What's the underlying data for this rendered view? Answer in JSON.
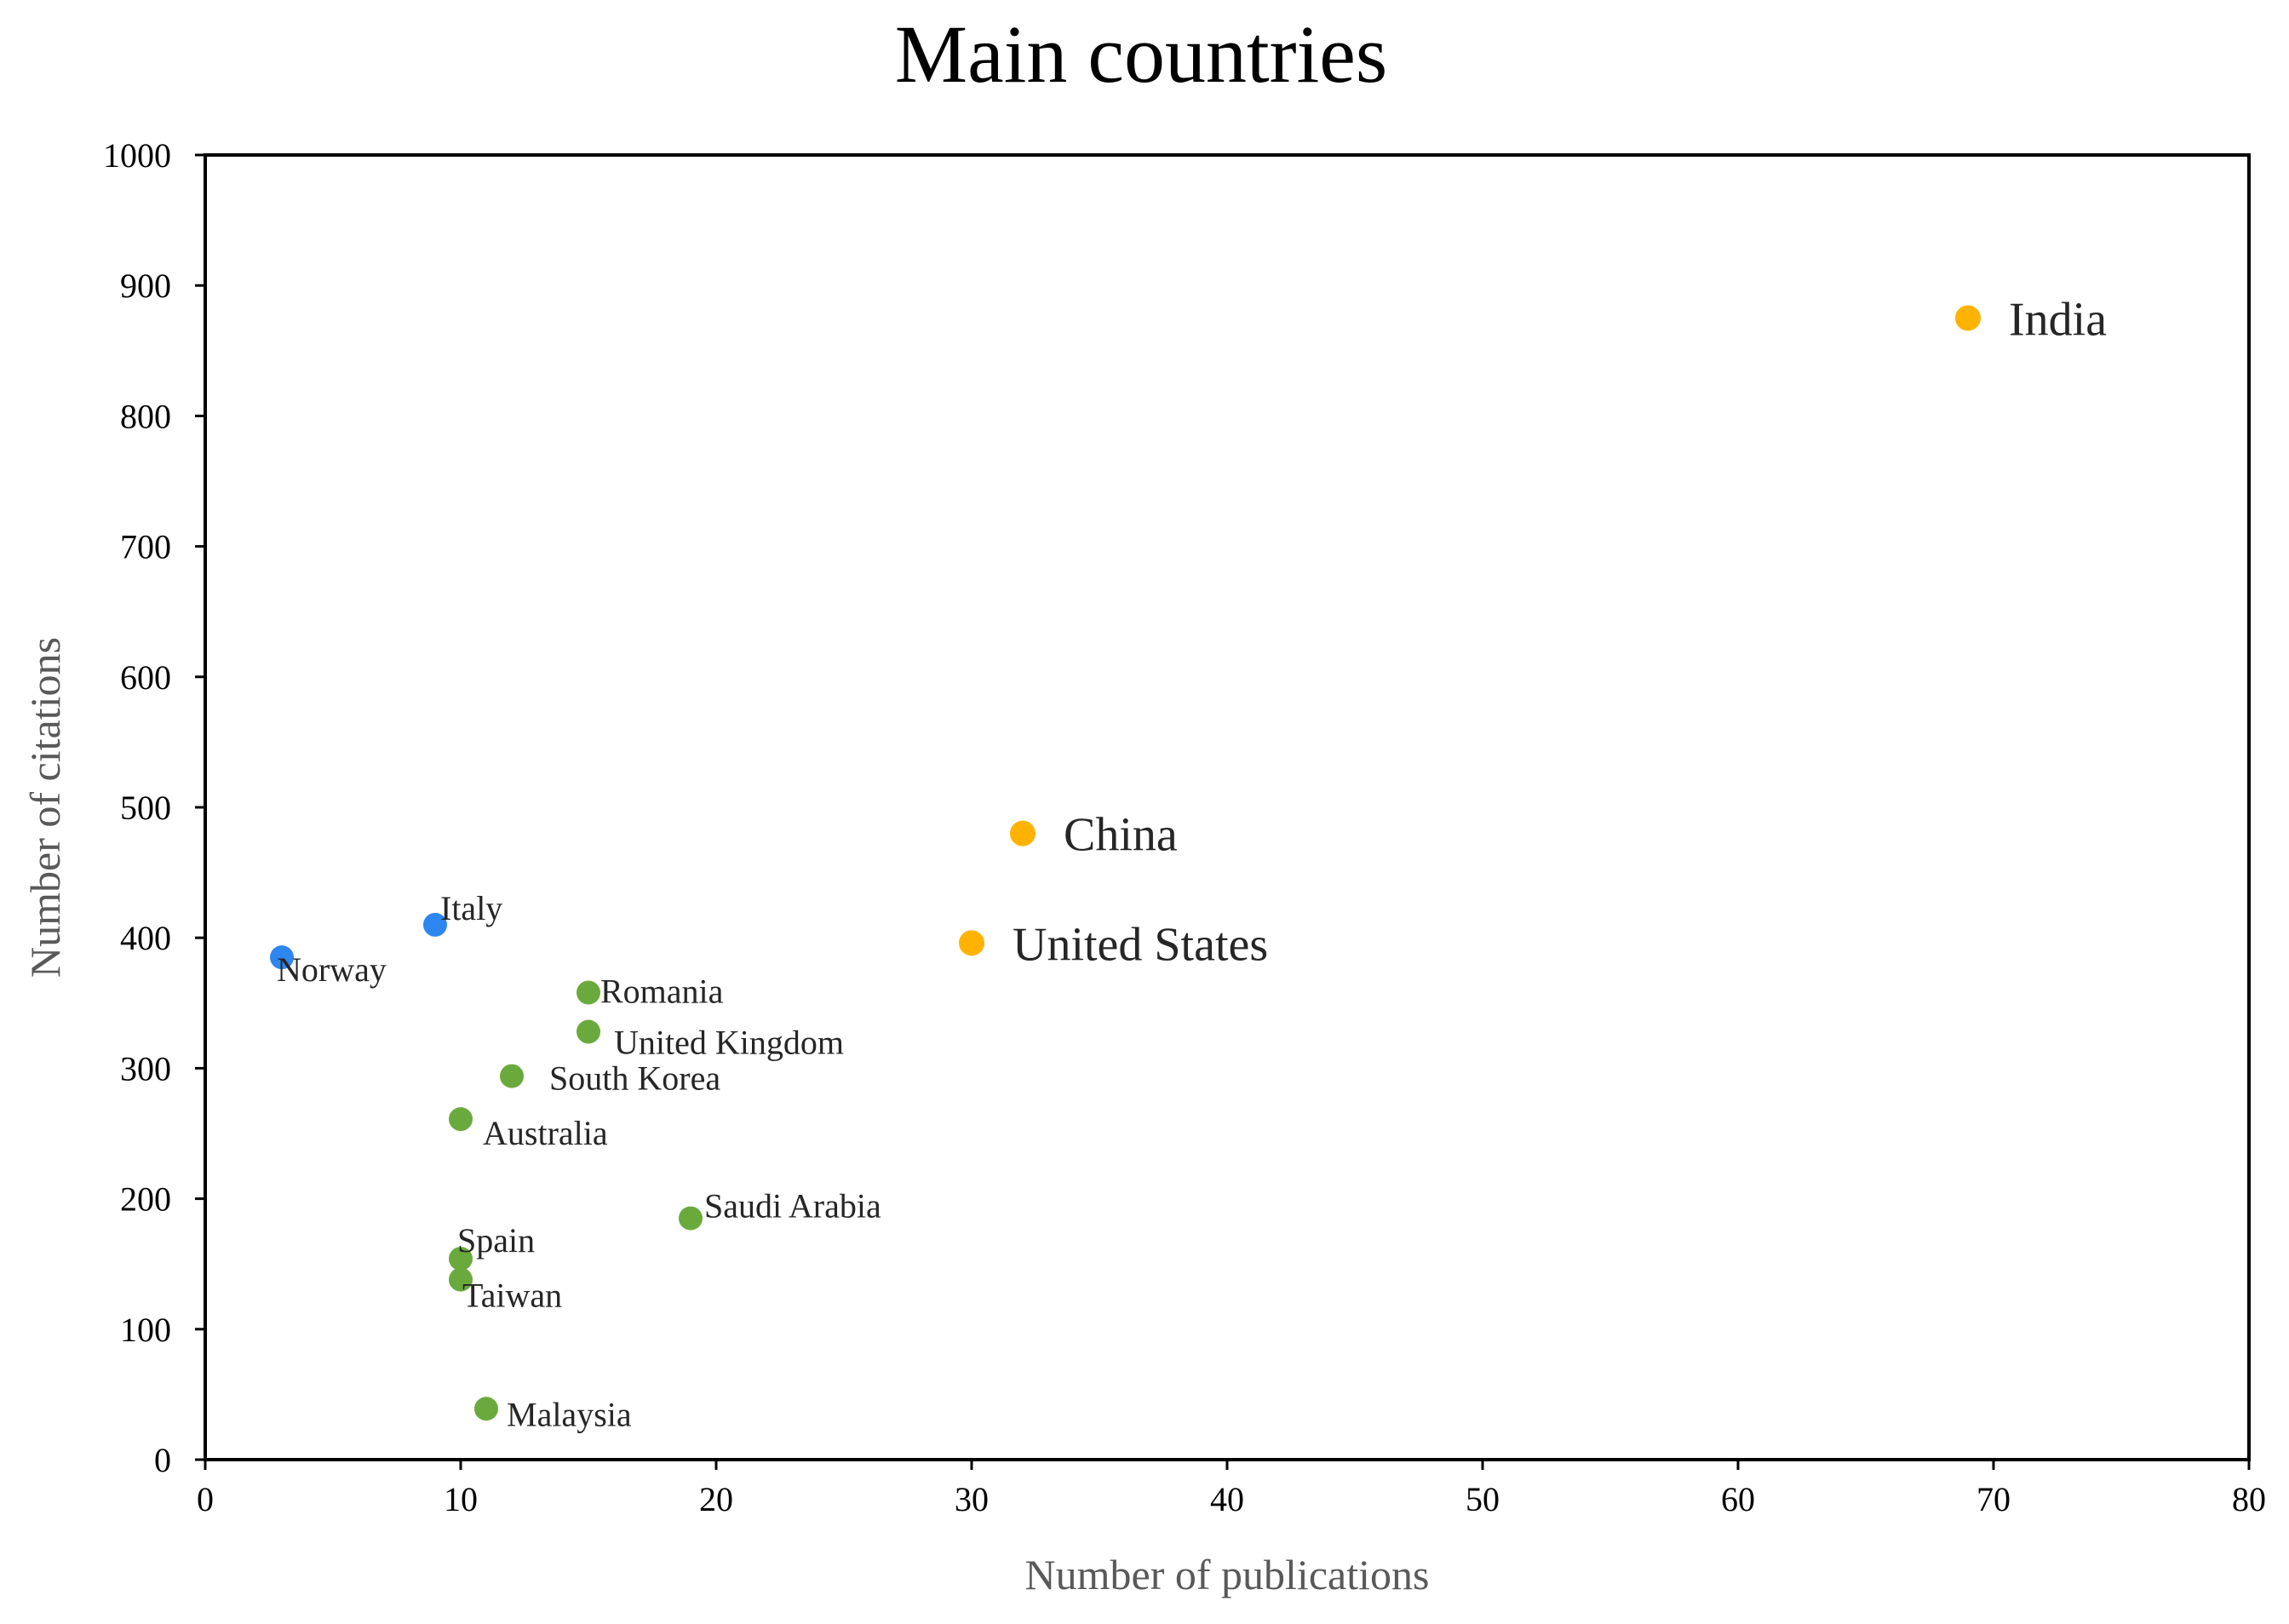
{
  "chart_data": {
    "type": "scatter",
    "title": "Main countries",
    "xlabel": "Number of publications",
    "ylabel": "Number of citations",
    "xlim": [
      0,
      80
    ],
    "ylim": [
      0,
      1000
    ],
    "x_ticks": [
      "0",
      "10",
      "20",
      "30",
      "40",
      "50",
      "60",
      "70",
      "80"
    ],
    "y_ticks": [
      "0",
      "100",
      "200",
      "300",
      "400",
      "500",
      "600",
      "700",
      "800",
      "900",
      "1000"
    ],
    "grid": false,
    "legend": "none",
    "colors": {
      "blue": "#2E86F0",
      "green": "#6AAA3C",
      "orange": "#FFB300"
    },
    "points": [
      {
        "label": "India",
        "x": 69,
        "y": 875,
        "color": "orange"
      },
      {
        "label": "China",
        "x": 32,
        "y": 480,
        "color": "orange"
      },
      {
        "label": "United States",
        "x": 30,
        "y": 396,
        "color": "orange"
      },
      {
        "label": "Italy",
        "x": 9,
        "y": 410,
        "color": "blue"
      },
      {
        "label": "Norway",
        "x": 3,
        "y": 385,
        "color": "blue"
      },
      {
        "label": "Romania",
        "x": 15,
        "y": 358,
        "color": "green"
      },
      {
        "label": "United Kingdom",
        "x": 15,
        "y": 328,
        "color": "green"
      },
      {
        "label": "South Korea",
        "x": 12,
        "y": 294,
        "color": "green"
      },
      {
        "label": "Australia",
        "x": 10,
        "y": 261,
        "color": "green"
      },
      {
        "label": "Saudi Arabia",
        "x": 19,
        "y": 185,
        "color": "green"
      },
      {
        "label": "Spain",
        "x": 10,
        "y": 154,
        "color": "green"
      },
      {
        "label": "Taiwan",
        "x": 10,
        "y": 138,
        "color": "green"
      },
      {
        "label": "Malaysia",
        "x": 11,
        "y": 39,
        "color": "green"
      }
    ]
  }
}
